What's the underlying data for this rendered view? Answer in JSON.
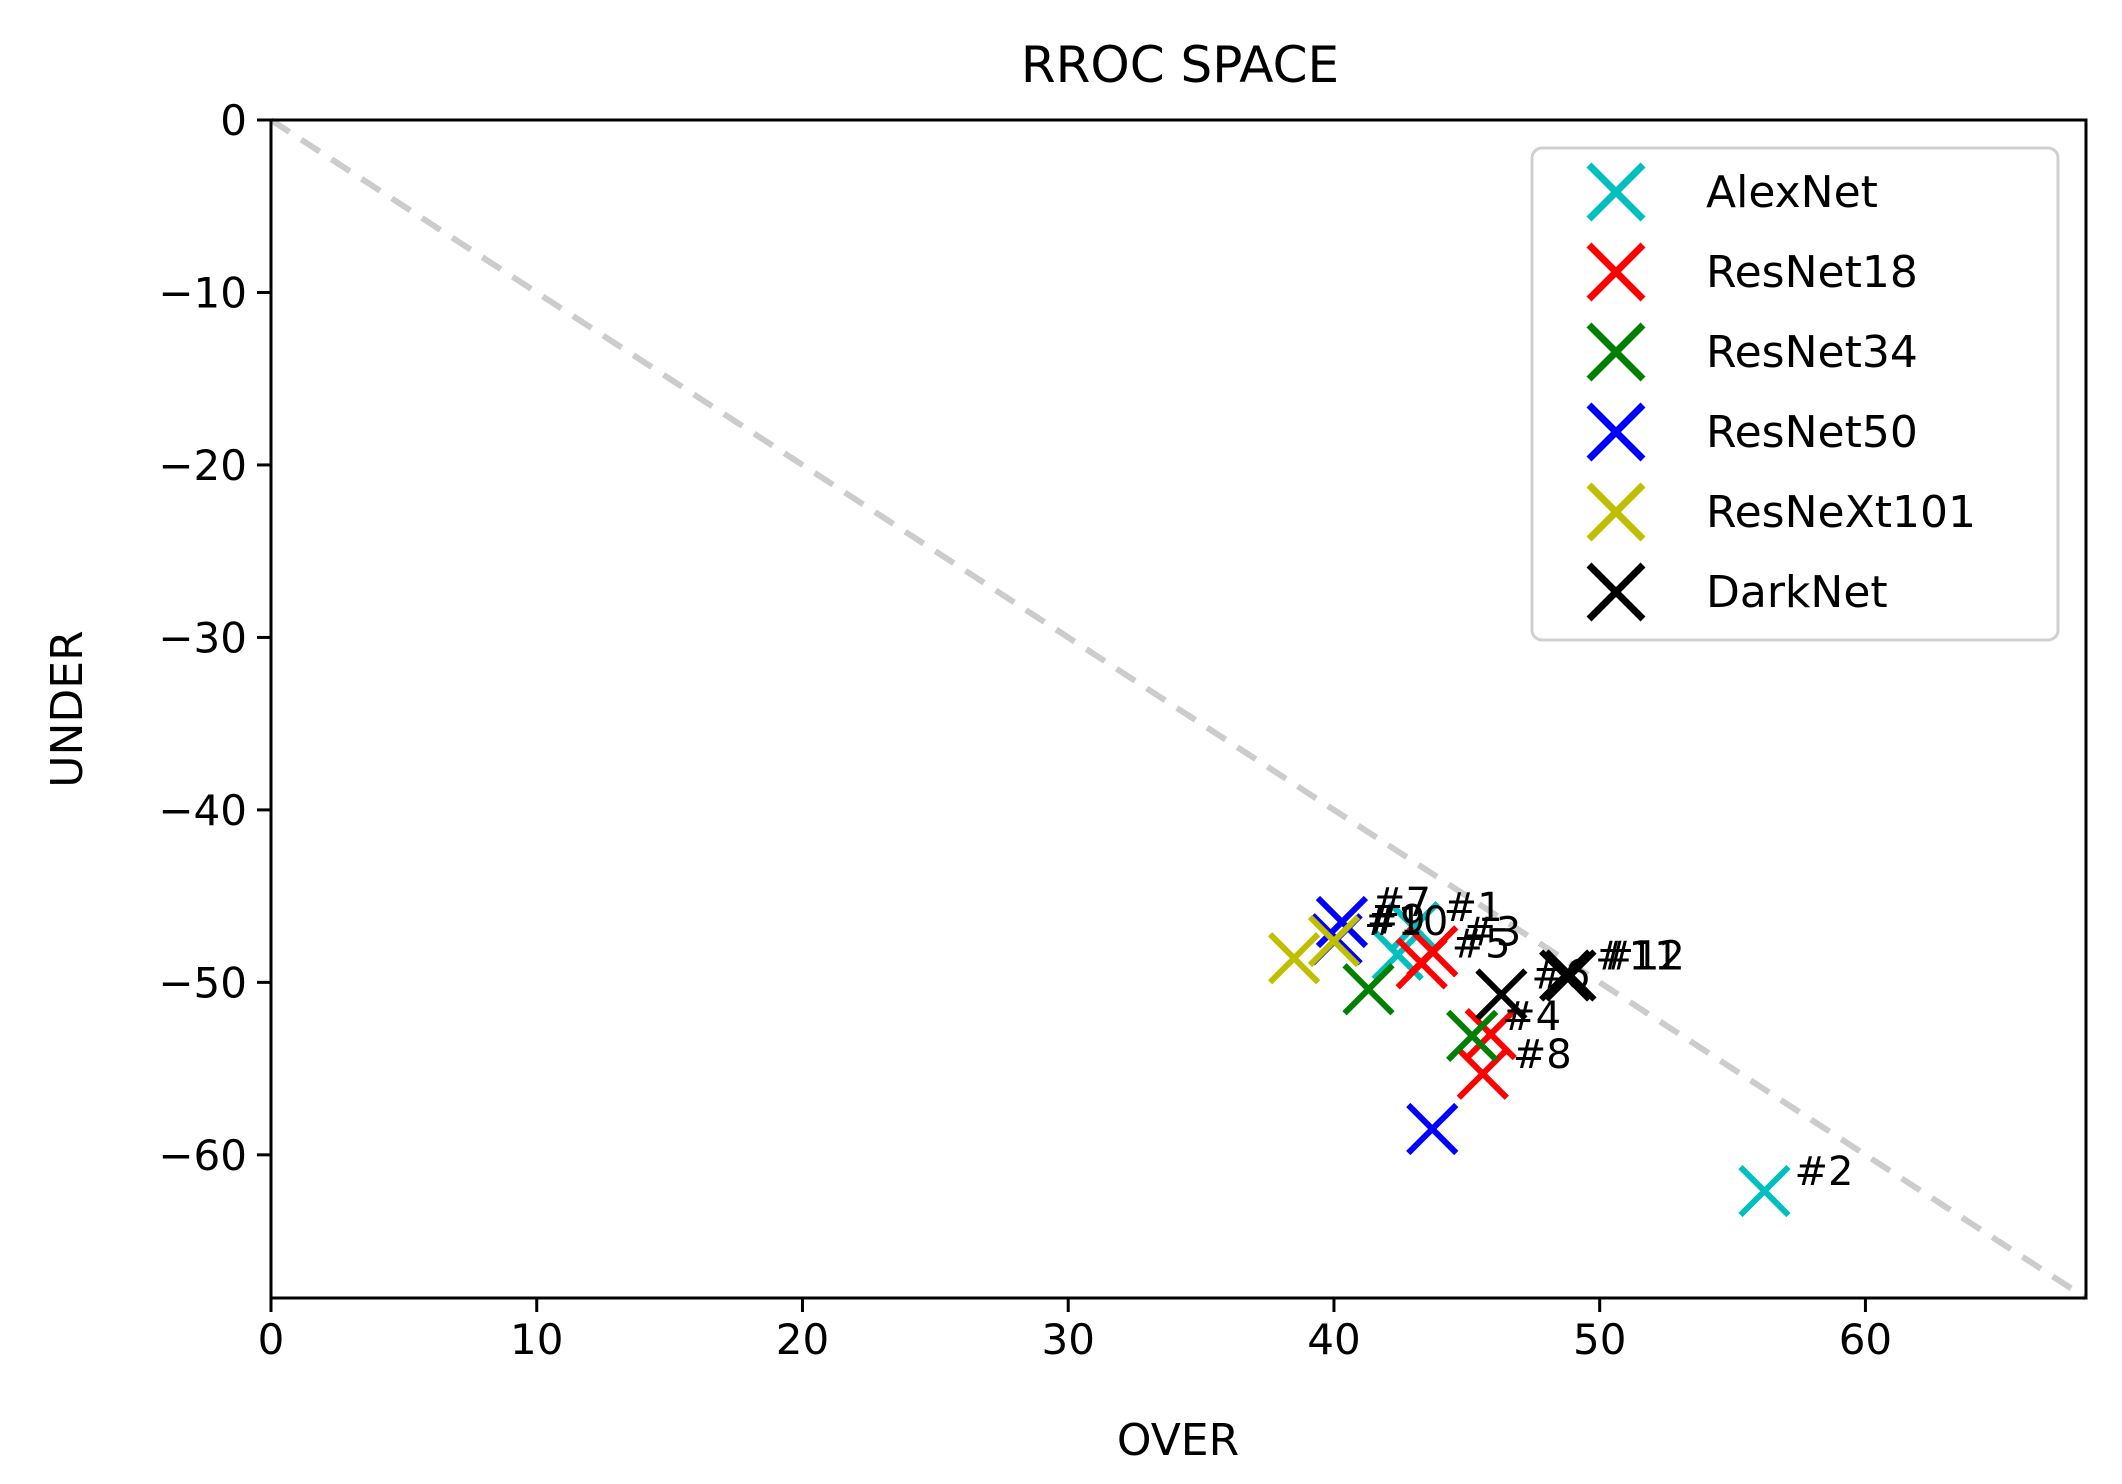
{
  "chart_data": {
    "type": "scatter",
    "title": "RROC SPACE",
    "xlabel": "OVER",
    "ylabel": "UNDER",
    "xlim": [
      0,
      68.3
    ],
    "ylim": [
      -68.3,
      0
    ],
    "xticks": [
      {
        "value": 0,
        "label": "0"
      },
      {
        "value": 10,
        "label": "10"
      },
      {
        "value": 20,
        "label": "20"
      },
      {
        "value": 30,
        "label": "30"
      },
      {
        "value": 40,
        "label": "40"
      },
      {
        "value": 50,
        "label": "50"
      },
      {
        "value": 60,
        "label": "60"
      }
    ],
    "yticks": [
      {
        "value": 0,
        "label": "0"
      },
      {
        "value": -10,
        "label": "−10"
      },
      {
        "value": -20,
        "label": "−20"
      },
      {
        "value": -30,
        "label": "−30"
      },
      {
        "value": -40,
        "label": "−40"
      },
      {
        "value": -50,
        "label": "−50"
      },
      {
        "value": -60,
        "label": "−60"
      }
    ],
    "grid": false,
    "reference_line": {
      "style": "dashed",
      "color": "#cccccc",
      "from": [
        0,
        0
      ],
      "to": [
        68.3,
        -68.3
      ]
    },
    "legend_position": "top-right",
    "series": [
      {
        "name": "AlexNet",
        "color": "#00bfbf",
        "points": [
          {
            "x": 43.0,
            "y": -46.8,
            "label": "#1"
          },
          {
            "x": 56.2,
            "y": -62.1,
            "label": "#2"
          },
          {
            "x": 42.4,
            "y": -48.4,
            "label": ""
          }
        ]
      },
      {
        "name": "ResNet18",
        "color": "#ff0000",
        "points": [
          {
            "x": 43.7,
            "y": -48.2,
            "label": "#3"
          },
          {
            "x": 43.3,
            "y": -48.9,
            "label": "#5"
          },
          {
            "x": 45.6,
            "y": -55.3,
            "label": "#8"
          },
          {
            "x": 45.9,
            "y": -53.0,
            "label": ""
          }
        ]
      },
      {
        "name": "ResNet34",
        "color": "#008000",
        "points": [
          {
            "x": 41.3,
            "y": -50.4,
            "label": ""
          },
          {
            "x": 45.2,
            "y": -53.1,
            "label": "#4"
          }
        ]
      },
      {
        "name": "ResNet50",
        "color": "#0000ff",
        "points": [
          {
            "x": 40.3,
            "y": -46.5,
            "label": "#7"
          },
          {
            "x": 40.1,
            "y": -47.5,
            "label": "#9"
          },
          {
            "x": 43.7,
            "y": -58.5,
            "label": ""
          }
        ]
      },
      {
        "name": "ResNeXt101",
        "color": "#bfbf00",
        "points": [
          {
            "x": 38.5,
            "y": -48.6,
            "label": ""
          },
          {
            "x": 40.0,
            "y": -47.6,
            "label": "#10"
          }
        ]
      },
      {
        "name": "DarkNet",
        "color": "#000000",
        "points": [
          {
            "x": 46.3,
            "y": -50.7,
            "label": "#6"
          },
          {
            "x": 48.7,
            "y": -49.6,
            "label": "#11"
          },
          {
            "x": 48.9,
            "y": -49.6,
            "label": "#12"
          }
        ]
      }
    ]
  }
}
